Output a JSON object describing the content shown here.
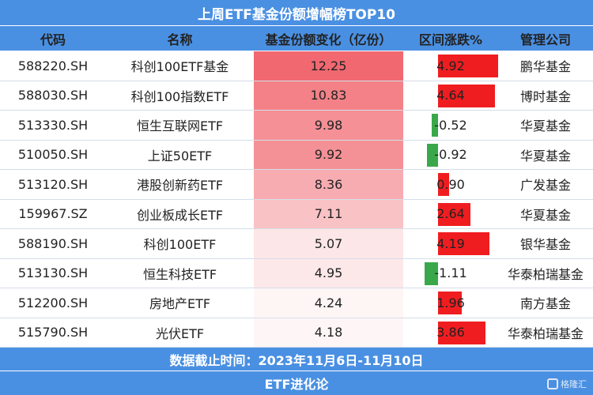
{
  "title": "上周ETF基金份额增幅榜TOP10",
  "headers": {
    "code": "代码",
    "name": "名称",
    "share_change": "基金份额变化（亿份）",
    "range_change": "区间涨跌%",
    "manager": "管理公司"
  },
  "chart_data": {
    "type": "table",
    "columns": [
      "代码",
      "名称",
      "基金份额变化（亿份）",
      "区间涨跌%",
      "管理公司"
    ],
    "rows": [
      {
        "code": "588220.SH",
        "name": "科创100ETF基金",
        "share_change": "12.25",
        "range_change": "4.92",
        "manager": "鹏华基金"
      },
      {
        "code": "588030.SH",
        "name": "科创100指数ETF",
        "share_change": "10.83",
        "range_change": "4.64",
        "manager": "博时基金"
      },
      {
        "code": "513330.SH",
        "name": "恒生互联网ETF",
        "share_change": "9.98",
        "range_change": "-0.52",
        "manager": "华夏基金"
      },
      {
        "code": "510050.SH",
        "name": "上证50ETF",
        "share_change": "9.92",
        "range_change": "-0.92",
        "manager": "华夏基金"
      },
      {
        "code": "513120.SH",
        "name": "港股创新药ETF",
        "share_change": "8.36",
        "range_change": "0.90",
        "manager": "广发基金"
      },
      {
        "code": "159967.SZ",
        "name": "创业板成长ETF",
        "share_change": "7.11",
        "range_change": "2.64",
        "manager": "华夏基金"
      },
      {
        "code": "588190.SH",
        "name": "科创100ETF",
        "share_change": "5.07",
        "range_change": "4.19",
        "manager": "银华基金"
      },
      {
        "code": "513130.SH",
        "name": "恒生科技ETF",
        "share_change": "4.95",
        "range_change": "-1.11",
        "manager": "华泰柏瑞基金"
      },
      {
        "code": "512200.SH",
        "name": "房地产ETF",
        "share_change": "4.24",
        "range_change": "1.96",
        "manager": "南方基金"
      },
      {
        "code": "515790.SH",
        "name": "光伏ETF",
        "share_change": "4.18",
        "range_change": "3.86",
        "manager": "华泰柏瑞基金"
      }
    ],
    "heatmap_column": "share_change",
    "heatmap_color": "#f0626a",
    "bar_column": "range_change",
    "bar_color_positive": "#f01d20",
    "bar_color_negative": "#3aa84a"
  },
  "footer": {
    "date_range": "数据截止时间：2023年11月6日-11月10日",
    "source": "ETF进化论"
  },
  "watermark": {
    "text": "格隆汇",
    "icon": "logo-icon"
  },
  "colors": {
    "header_bg": "#4a90e2",
    "header_text": "#ffffff"
  }
}
